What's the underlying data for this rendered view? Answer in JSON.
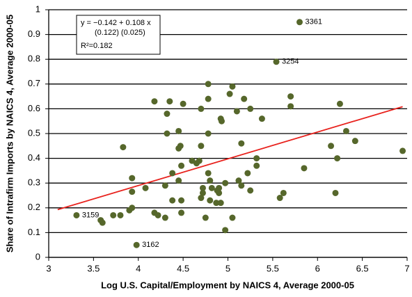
{
  "chart_data": {
    "type": "scatter",
    "x_label": "Log U.S. Capital/Employment by NAICS 4, Average 2000-05",
    "y_label": "Share of Intrafirm Imports by NAICS 4, Average 2000-05",
    "xlim": [
      3,
      7
    ],
    "xticks": [
      3,
      3.5,
      4,
      4.5,
      5,
      5.5,
      6,
      6.5,
      7
    ],
    "ylim": [
      0,
      1
    ],
    "yticks": [
      0,
      0.1,
      0.2,
      0.3,
      0.4,
      0.5,
      0.6,
      0.7,
      0.8,
      0.9,
      1
    ],
    "grid": true,
    "series": [
      {
        "color": "#56672b",
        "x": [
          5.8,
          5.54,
          3.31,
          3.98,
          3.58,
          3.6,
          3.72,
          3.8,
          3.83,
          3.9,
          3.93,
          3.93,
          3.93,
          4.08,
          4.18,
          4.18,
          4.22,
          4.3,
          4.3,
          4.32,
          4.32,
          4.35,
          4.38,
          4.38,
          4.45,
          4.45,
          4.45,
          4.47,
          4.48,
          4.48,
          4.48,
          4.5,
          4.6,
          4.65,
          4.68,
          4.7,
          4.7,
          4.7,
          4.72,
          4.72,
          4.75,
          4.78,
          4.78,
          4.78,
          4.78,
          4.8,
          4.8,
          4.82,
          4.87,
          4.88,
          4.9,
          4.9,
          4.92,
          4.92,
          4.93,
          4.97,
          4.97,
          5.02,
          5.05,
          5.05,
          5.1,
          5.12,
          5.15,
          5.15,
          5.18,
          5.22,
          5.25,
          5.25,
          5.32,
          5.32,
          5.38,
          5.58,
          5.62,
          5.7,
          5.7,
          5.85,
          6.15,
          6.2,
          6.22,
          6.25,
          6.32,
          6.42,
          6.95
        ],
        "values": [
          0.95,
          0.79,
          0.17,
          0.05,
          0.15,
          0.14,
          0.17,
          0.17,
          0.445,
          0.19,
          0.2,
          0.32,
          0.265,
          0.28,
          0.63,
          0.18,
          0.17,
          0.16,
          0.29,
          0.58,
          0.5,
          0.63,
          0.34,
          0.23,
          0.51,
          0.44,
          0.31,
          0.45,
          0.23,
          0.37,
          0.18,
          0.62,
          0.39,
          0.38,
          0.39,
          0.45,
          0.24,
          0.6,
          0.28,
          0.26,
          0.16,
          0.7,
          0.64,
          0.5,
          0.34,
          0.31,
          0.23,
          0.28,
          0.22,
          0.27,
          0.28,
          0.26,
          0.22,
          0.56,
          0.55,
          0.11,
          0.3,
          0.66,
          0.69,
          0.16,
          0.59,
          0.31,
          0.29,
          0.46,
          0.64,
          0.34,
          0.27,
          0.6,
          0.4,
          0.37,
          0.56,
          0.24,
          0.26,
          0.65,
          0.61,
          0.36,
          0.45,
          0.26,
          0.4,
          0.62,
          0.51,
          0.47,
          0.43
        ],
        "labels": [
          "3361",
          "3254",
          "3159",
          "3162",
          null,
          null,
          null,
          null,
          null,
          null,
          null,
          null,
          null,
          null,
          null,
          null,
          null,
          null,
          null,
          null,
          null,
          null,
          null,
          null,
          null,
          null,
          null,
          null,
          null,
          null,
          null,
          null,
          null,
          null,
          null,
          null,
          null,
          null,
          null,
          null,
          null,
          null,
          null,
          null,
          null,
          null,
          null,
          null,
          null,
          null,
          null,
          null,
          null,
          null,
          null,
          null,
          null,
          null,
          null,
          null,
          null,
          null,
          null,
          null,
          null,
          null,
          null,
          null,
          null,
          null,
          null,
          null,
          null,
          null,
          null,
          null,
          null,
          null,
          null,
          null,
          null,
          null,
          null
        ]
      }
    ],
    "trendline": {
      "intercept": -0.142,
      "slope": 0.108,
      "x_range": [
        3.1,
        6.95
      ],
      "color": "#e8221d"
    },
    "equation": {
      "line1": "y = −0.142 + 0.108 x",
      "line2": "(0.122)      (0.025)",
      "r2": "R²=0.182"
    }
  }
}
